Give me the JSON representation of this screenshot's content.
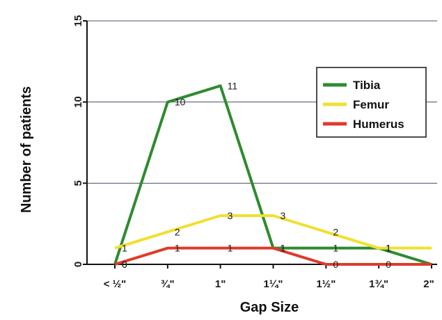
{
  "chart_data": {
    "type": "line",
    "title": "",
    "xlabel": "Gap Size",
    "ylabel": "Number of patients",
    "categories": [
      "< ½\"",
      "¾\"",
      "1\"",
      "1¼\"",
      "1½\"",
      "1¾\"",
      "2\""
    ],
    "ylim": [
      0,
      15
    ],
    "yticks": [
      0,
      5,
      10,
      15
    ],
    "grid": "horizontal",
    "legend_position": "top-right",
    "series": [
      {
        "name": "Tibia",
        "color": "#2e8b2e",
        "values": [
          0,
          10,
          11,
          1,
          1,
          1,
          0
        ],
        "labels": [
          "0",
          "10",
          "11",
          "1",
          "1",
          "1",
          ""
        ]
      },
      {
        "name": "Femur",
        "color": "#f0e030",
        "values": [
          1,
          2,
          3,
          3,
          2,
          1,
          1
        ],
        "labels": [
          "1",
          "2",
          "3",
          "3",
          "2",
          "1",
          ""
        ]
      },
      {
        "name": "Humerus",
        "color": "#e03a2a",
        "values": [
          0,
          1,
          1,
          1,
          0,
          0,
          0
        ],
        "labels": [
          "0",
          "1",
          "1",
          "1",
          "0",
          "0",
          ""
        ]
      }
    ]
  }
}
